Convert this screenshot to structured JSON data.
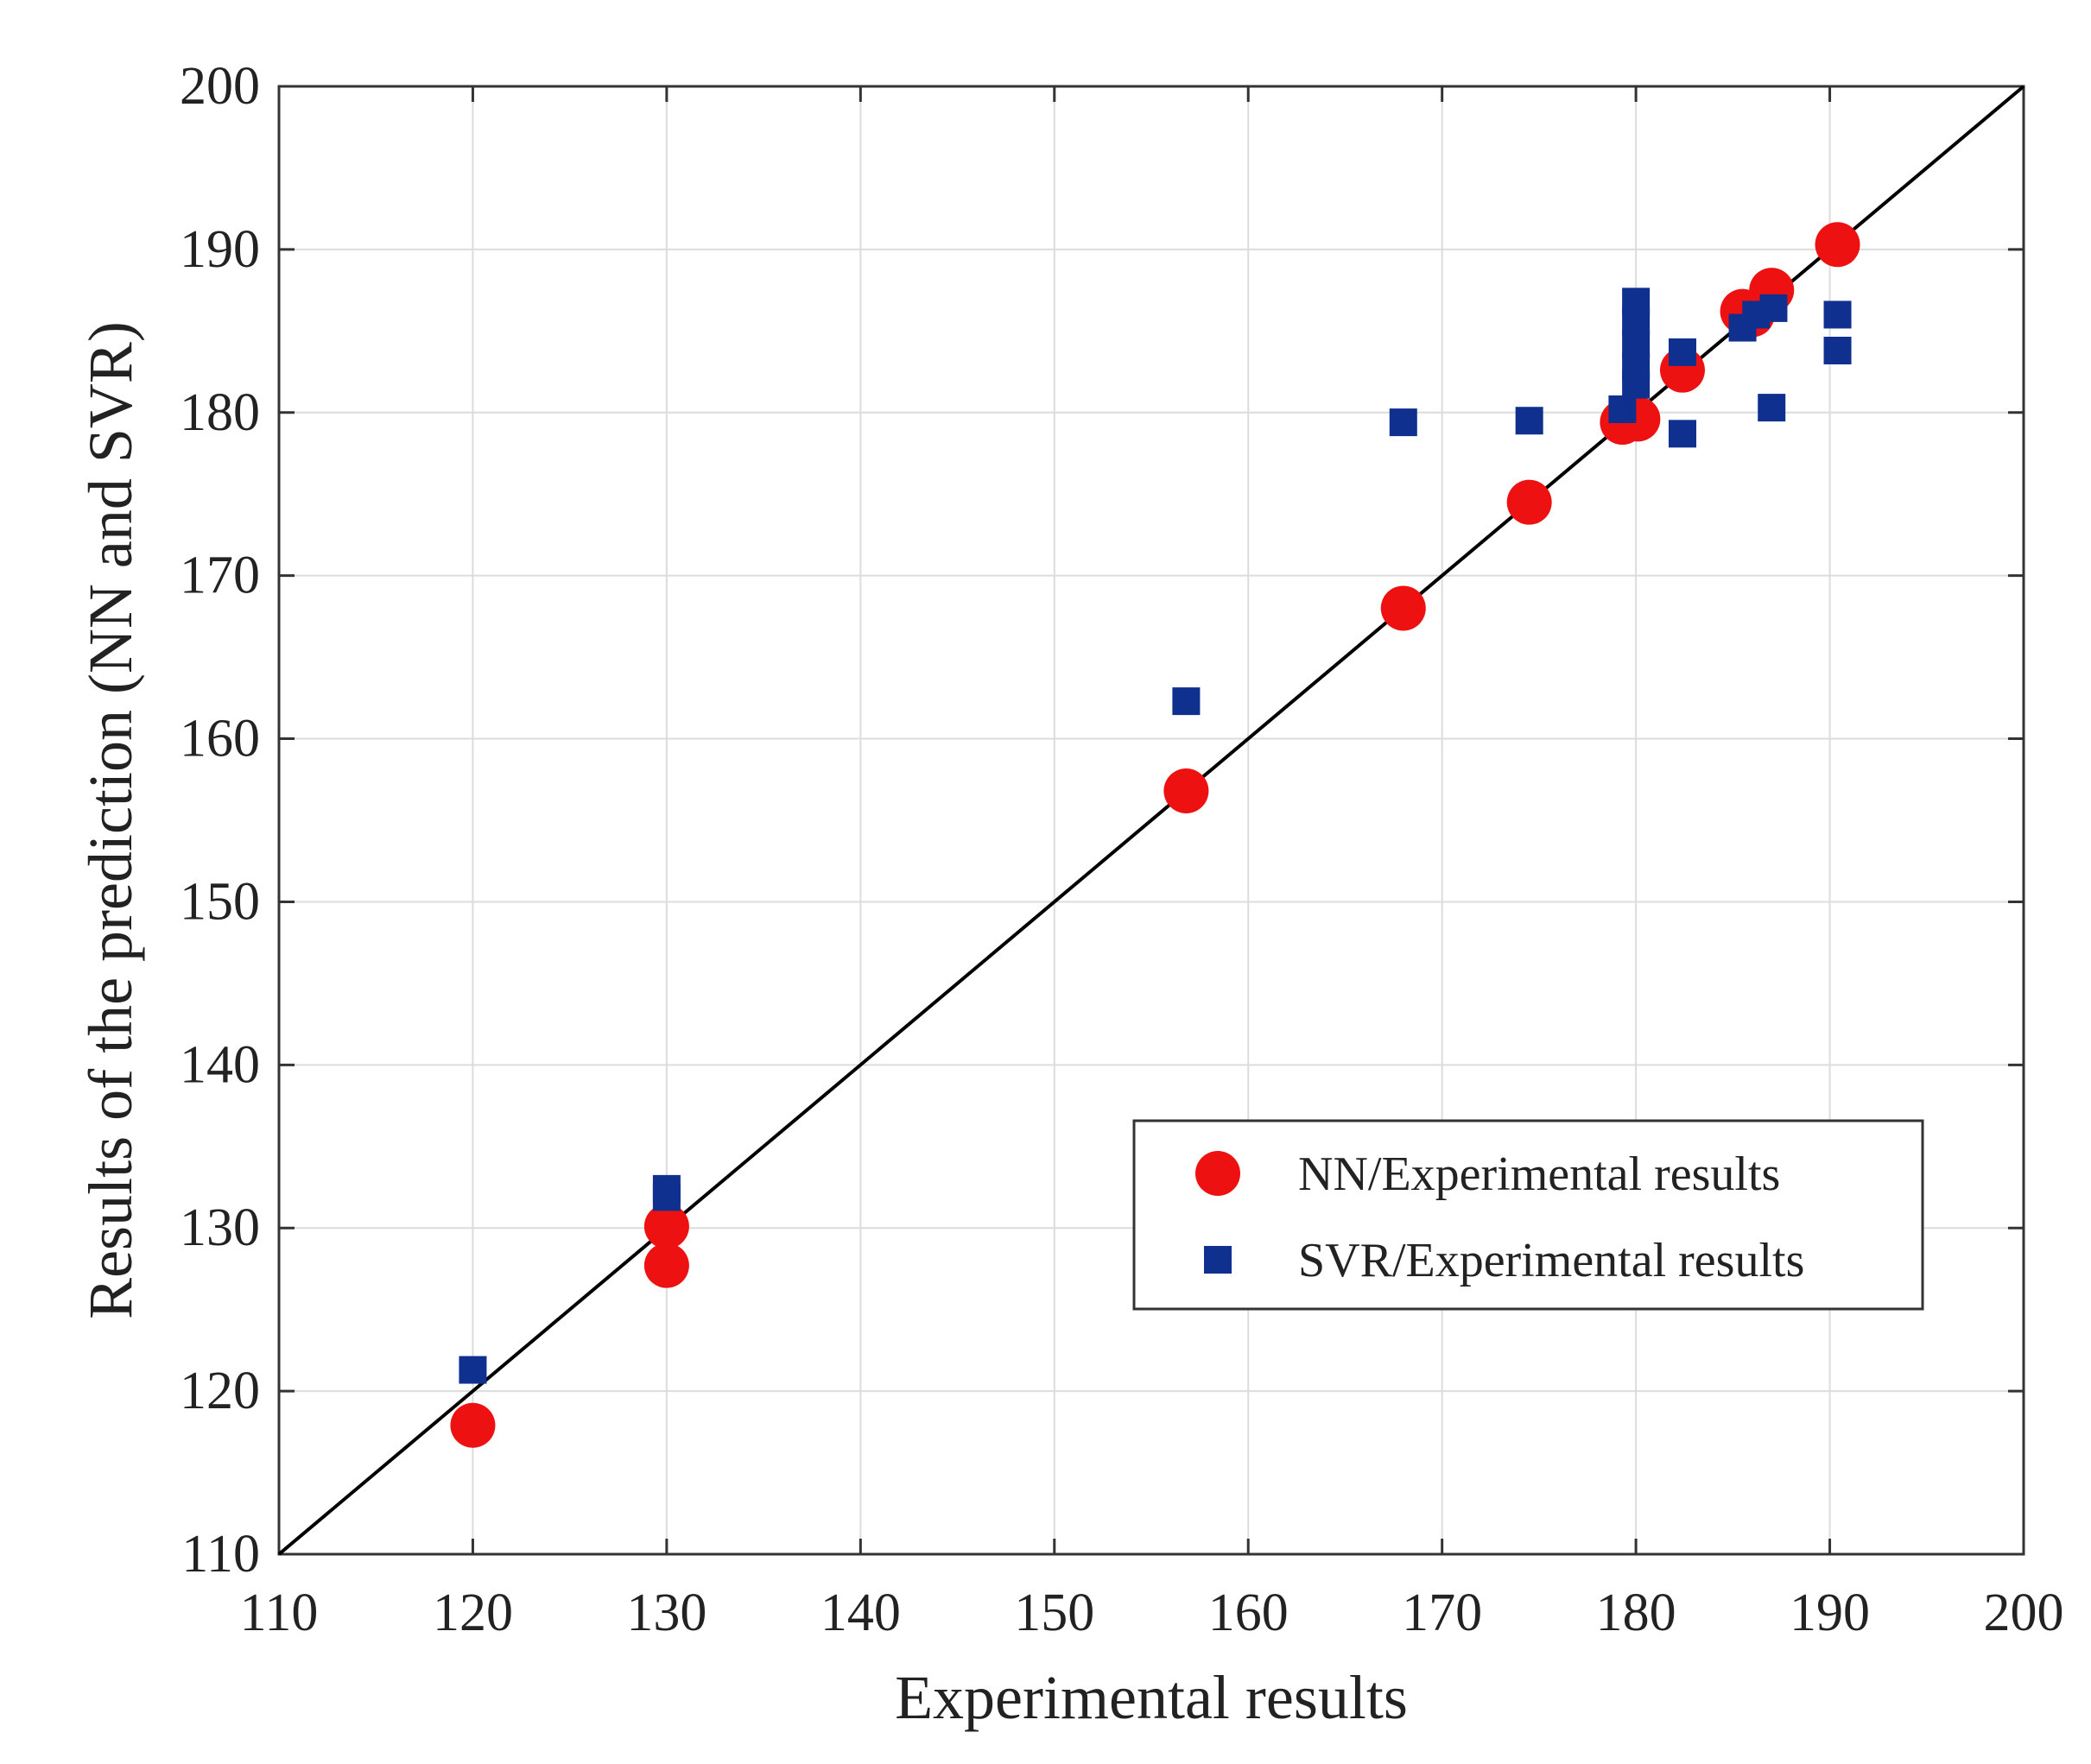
{
  "chart_data": {
    "type": "scatter",
    "xlabel": "Experimental results",
    "ylabel": "Results of the prediction (NN and SVR)",
    "xlim": [
      110,
      200
    ],
    "ylim": [
      110,
      200
    ],
    "xticks": [
      110,
      120,
      130,
      140,
      150,
      160,
      170,
      180,
      190,
      200
    ],
    "yticks": [
      110,
      120,
      130,
      140,
      150,
      160,
      170,
      180,
      190,
      200
    ],
    "grid": true,
    "reference_line": {
      "x": [
        110,
        200
      ],
      "y": [
        110,
        200
      ],
      "color": "#000000"
    },
    "legend_position": "lower-right",
    "series": [
      {
        "name": "NN/Experimental results",
        "marker": "circle",
        "color": "#ee1111",
        "points": [
          [
            120,
            117.9
          ],
          [
            130,
            130.1
          ],
          [
            130,
            127.7
          ],
          [
            156.8,
            156.8
          ],
          [
            168,
            168.0
          ],
          [
            174.5,
            174.5
          ],
          [
            179.3,
            179.4
          ],
          [
            180.1,
            179.6
          ],
          [
            182.4,
            182.6
          ],
          [
            185.5,
            186.2
          ],
          [
            186.0,
            186.0
          ],
          [
            187.0,
            187.5
          ],
          [
            190.4,
            190.3
          ]
        ]
      },
      {
        "name": "SVR/Experimental results",
        "marker": "square",
        "color": "#10308f",
        "points": [
          [
            120,
            121.3
          ],
          [
            130,
            132.4
          ],
          [
            130,
            131.9
          ],
          [
            156.8,
            162.3
          ],
          [
            168,
            179.4
          ],
          [
            174.5,
            179.5
          ],
          [
            179.3,
            180.2
          ],
          [
            180,
            186.8
          ],
          [
            180,
            185.6
          ],
          [
            180,
            184.2
          ],
          [
            180,
            182.8
          ],
          [
            180,
            181.7
          ],
          [
            182.4,
            183.7
          ],
          [
            182.4,
            178.7
          ],
          [
            185.5,
            185.2
          ],
          [
            186.2,
            186.0
          ],
          [
            187.1,
            186.4
          ],
          [
            187.0,
            180.3
          ],
          [
            190.4,
            186.0
          ],
          [
            190.4,
            183.8
          ]
        ]
      }
    ]
  }
}
